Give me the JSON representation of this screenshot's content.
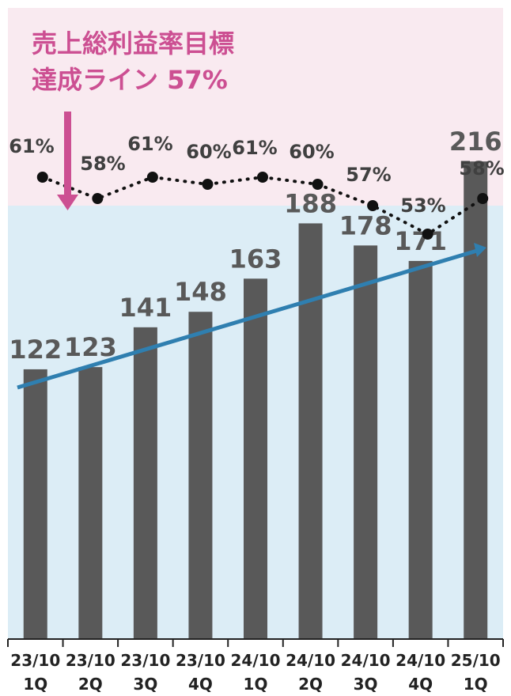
{
  "colors": {
    "target_band": "#f9eaf0",
    "below_band": "#dcedf6",
    "bar": "#595959",
    "target_annotation": "#cc4f92",
    "trend_arrow": "#2f7fb0",
    "margin_line": "#111111"
  },
  "annotation": {
    "line1": "売上総利益率目標",
    "line2_prefix": "達成ライン ",
    "line2_value": "57%"
  },
  "chart_data": [
    {
      "type": "bar",
      "categories": [
        [
          "23/10",
          "1Q"
        ],
        [
          "23/10",
          "2Q"
        ],
        [
          "23/10",
          "3Q"
        ],
        [
          "23/10",
          "4Q"
        ],
        [
          "24/10",
          "1Q"
        ],
        [
          "24/10",
          "2Q"
        ],
        [
          "24/10",
          "3Q"
        ],
        [
          "24/10",
          "4Q"
        ],
        [
          "25/10",
          "1Q"
        ]
      ],
      "values": [
        122,
        123,
        141,
        148,
        163,
        188,
        178,
        171,
        216
      ],
      "data_labels": [
        "122",
        "123",
        "141",
        "148",
        "163",
        "188",
        "178",
        "171",
        "216"
      ],
      "ylim": [
        0,
        230
      ],
      "trend_arrow": "increasing"
    },
    {
      "type": "line",
      "line_style": "dotted",
      "values": [
        61,
        58,
        61,
        60,
        61,
        60,
        57,
        53,
        58
      ],
      "data_labels": [
        "61%",
        "58%",
        "61%",
        "60%",
        "61%",
        "60%",
        "57%",
        "53%",
        "58%"
      ],
      "target_value": 57
    }
  ]
}
